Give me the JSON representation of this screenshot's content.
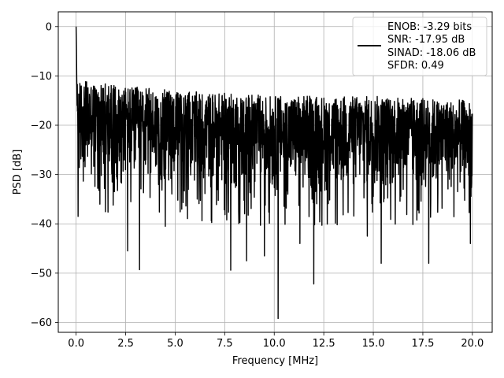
{
  "chart_data": {
    "type": "line",
    "title": "",
    "xlabel": "Frequency [MHz]",
    "ylabel": "PSD [dB]",
    "xlim": [
      -0.9,
      21.0
    ],
    "ylim": [
      -62.0,
      3.0
    ],
    "grid": true,
    "x_ticks": [
      0.0,
      2.5,
      5.0,
      7.5,
      10.0,
      12.5,
      15.0,
      17.5,
      20.0
    ],
    "x_tick_labels": [
      "0.0",
      "2.5",
      "5.0",
      "7.5",
      "10.0",
      "12.5",
      "15.0",
      "17.5",
      "20.0"
    ],
    "y_ticks": [
      0,
      -10,
      -20,
      -30,
      -40,
      -50,
      -60
    ],
    "y_tick_labels": [
      "0",
      "−10",
      "−20",
      "−30",
      "−40",
      "−50",
      "−60"
    ],
    "legend": {
      "placement": "top-right",
      "entries": [
        "ENOB: -3.29 bits",
        "SNR: -17.95 dB",
        "SINAD: -18.06 dB",
        "SFDR: 0.49"
      ]
    },
    "series": [
      {
        "color": "#000000",
        "x_range": [
          0.0,
          20.0
        ],
        "points": 2000,
        "start_values": [
          0.0,
          -2.0,
          -5.0,
          -10.0,
          -13.0,
          -16.0
        ],
        "upper_envelope": [
          [
            0.5,
            -11
          ],
          [
            2.5,
            -12
          ],
          [
            5.0,
            -13
          ],
          [
            10.0,
            -14
          ],
          [
            15.0,
            -14
          ],
          [
            20.0,
            -15
          ]
        ],
        "lower_envelope": [
          [
            0.5,
            -32
          ],
          [
            5.0,
            -33
          ],
          [
            10.0,
            -35
          ],
          [
            15.0,
            -34
          ],
          [
            20.0,
            -35
          ]
        ],
        "notable_dips": [
          {
            "x": 0.1,
            "y": -38.5
          },
          {
            "x": 2.6,
            "y": -45.5
          },
          {
            "x": 3.2,
            "y": -49.3
          },
          {
            "x": 4.5,
            "y": -40.5
          },
          {
            "x": 7.8,
            "y": -49.4
          },
          {
            "x": 8.6,
            "y": -47.5
          },
          {
            "x": 9.5,
            "y": -46.5
          },
          {
            "x": 10.2,
            "y": -59.2
          },
          {
            "x": 11.3,
            "y": -44.0
          },
          {
            "x": 12.0,
            "y": -52.2
          },
          {
            "x": 14.7,
            "y": -42.5
          },
          {
            "x": 15.4,
            "y": -48.0
          },
          {
            "x": 17.8,
            "y": -48.0
          },
          {
            "x": 19.9,
            "y": -44.0
          }
        ]
      }
    ]
  }
}
